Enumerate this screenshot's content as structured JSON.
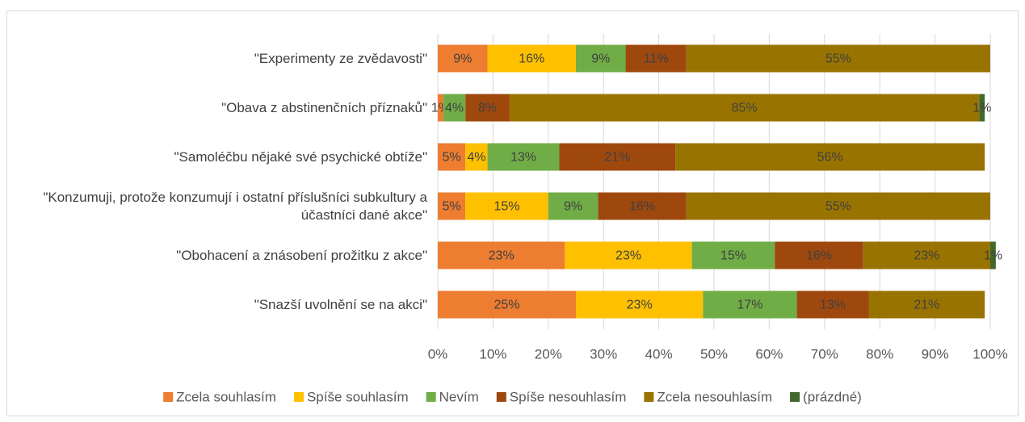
{
  "chart_data": {
    "type": "stacked_barh",
    "categories": [
      "\"Experimenty ze zvědavosti\"",
      "\"Obava z abstinenčních příznaků\"",
      "\"Samoléčbu nějaké své psychické obtíže\"",
      "\"Konzumuji, protože konzumují i ostatní příslušníci subkultury a účastníci dané akce\"",
      "\"Obohacení a znásobení prožitku z akce\"",
      "\"Snazší uvolnění se na akci\""
    ],
    "series": [
      {
        "name": "Zcela souhlasím",
        "color": "#ED7D31",
        "values": [
          9,
          1,
          5,
          5,
          23,
          25
        ],
        "value_labels": [
          "9%",
          "1%",
          "5%",
          "5%",
          "23%",
          "25%"
        ]
      },
      {
        "name": "Spíše souhlasím",
        "color": "#FFC000",
        "values": [
          16,
          null,
          4,
          15,
          23,
          23
        ],
        "value_labels": [
          "16%",
          null,
          "4%",
          "15%",
          "23%",
          "23%"
        ]
      },
      {
        "name": "Nevím",
        "color": "#70AD47",
        "values": [
          9,
          4,
          13,
          9,
          15,
          17
        ],
        "value_labels": [
          "9%",
          "4%",
          "13%",
          "9%",
          "15%",
          "17%"
        ]
      },
      {
        "name": "Spíše nesouhlasím",
        "color": "#9E480E",
        "values": [
          11,
          8,
          21,
          16,
          16,
          13
        ],
        "value_labels": [
          "11%",
          "8%",
          "21%",
          "16%",
          "16%",
          "13%"
        ]
      },
      {
        "name": "Zcela nesouhlasím",
        "color": "#997300",
        "values": [
          55,
          85,
          56,
          55,
          23,
          21
        ],
        "value_labels": [
          "55%",
          "85%",
          "56%",
          "55%",
          "23%",
          "21%"
        ]
      },
      {
        "name": "(prázdné)",
        "color": "#43682B",
        "values": [
          null,
          1,
          null,
          null,
          1,
          null
        ],
        "value_labels": [
          null,
          "1%",
          null,
          null,
          "1%",
          null
        ]
      }
    ],
    "xlim": [
      0,
      100
    ],
    "xticks": [
      {
        "value": 0,
        "label": "0%"
      },
      {
        "value": 10,
        "label": "10%"
      },
      {
        "value": 20,
        "label": "20%"
      },
      {
        "value": 30,
        "label": "30%"
      },
      {
        "value": 40,
        "label": "40%"
      },
      {
        "value": 50,
        "label": "50%"
      },
      {
        "value": 60,
        "label": "60%"
      },
      {
        "value": 70,
        "label": "70%"
      },
      {
        "value": 80,
        "label": "80%"
      },
      {
        "value": 90,
        "label": "90%"
      },
      {
        "value": 100,
        "label": "100%"
      }
    ],
    "grid": true,
    "legend": "bottom"
  }
}
